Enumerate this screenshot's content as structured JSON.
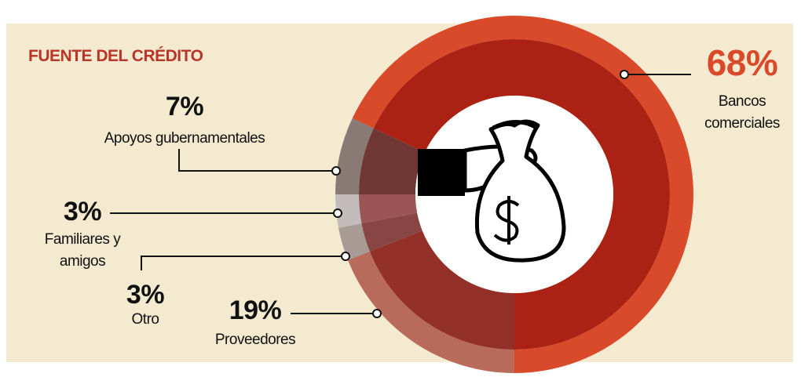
{
  "chart_data": {
    "type": "donut",
    "title": "FUENTE DEL CRÉDITO",
    "categories": [
      "Bancos comerciales",
      "Proveedores",
      "Otro",
      "Familiares y amigos",
      "Apoyos gubernamentales"
    ],
    "values": [
      68,
      19,
      3,
      3,
      7
    ],
    "value_labels": [
      "68%",
      "19%",
      "3%",
      "3%",
      "7%"
    ],
    "colors": [
      "#d84a2a",
      "#b86b5a",
      "#a89a94",
      "#c4bcbc",
      "#8a7a76"
    ]
  }
}
